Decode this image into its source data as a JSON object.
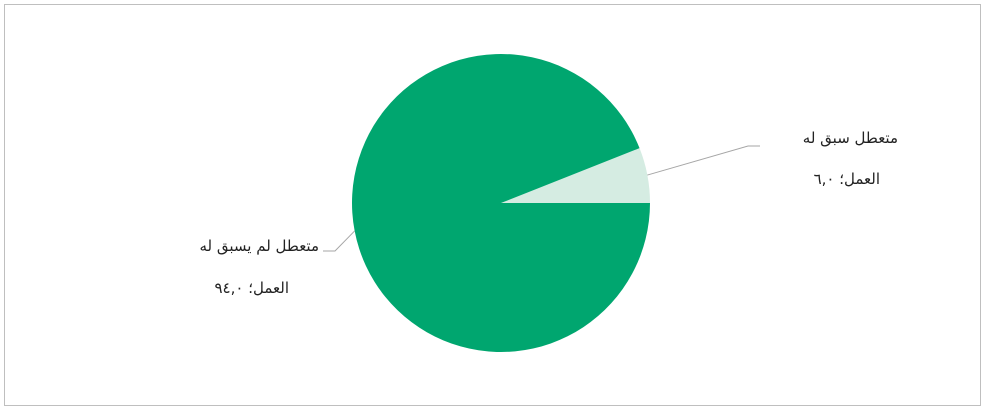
{
  "chart_data": {
    "type": "pie",
    "title": "",
    "slices": [
      {
        "name": "متعطل سبق له العمل",
        "value": 6.0,
        "label_line1": "متعطل سبق له",
        "label_line2": "العمل؛ ٦,٠",
        "color": "#d5ece2"
      },
      {
        "name": "متعطل لم يسبق له العمل",
        "value": 94.0,
        "label_line1": "متعطل لم يسبق له",
        "label_line2": "العمل؛ ٩٤,٠",
        "color": "#00a66f"
      }
    ],
    "legend": "none"
  }
}
